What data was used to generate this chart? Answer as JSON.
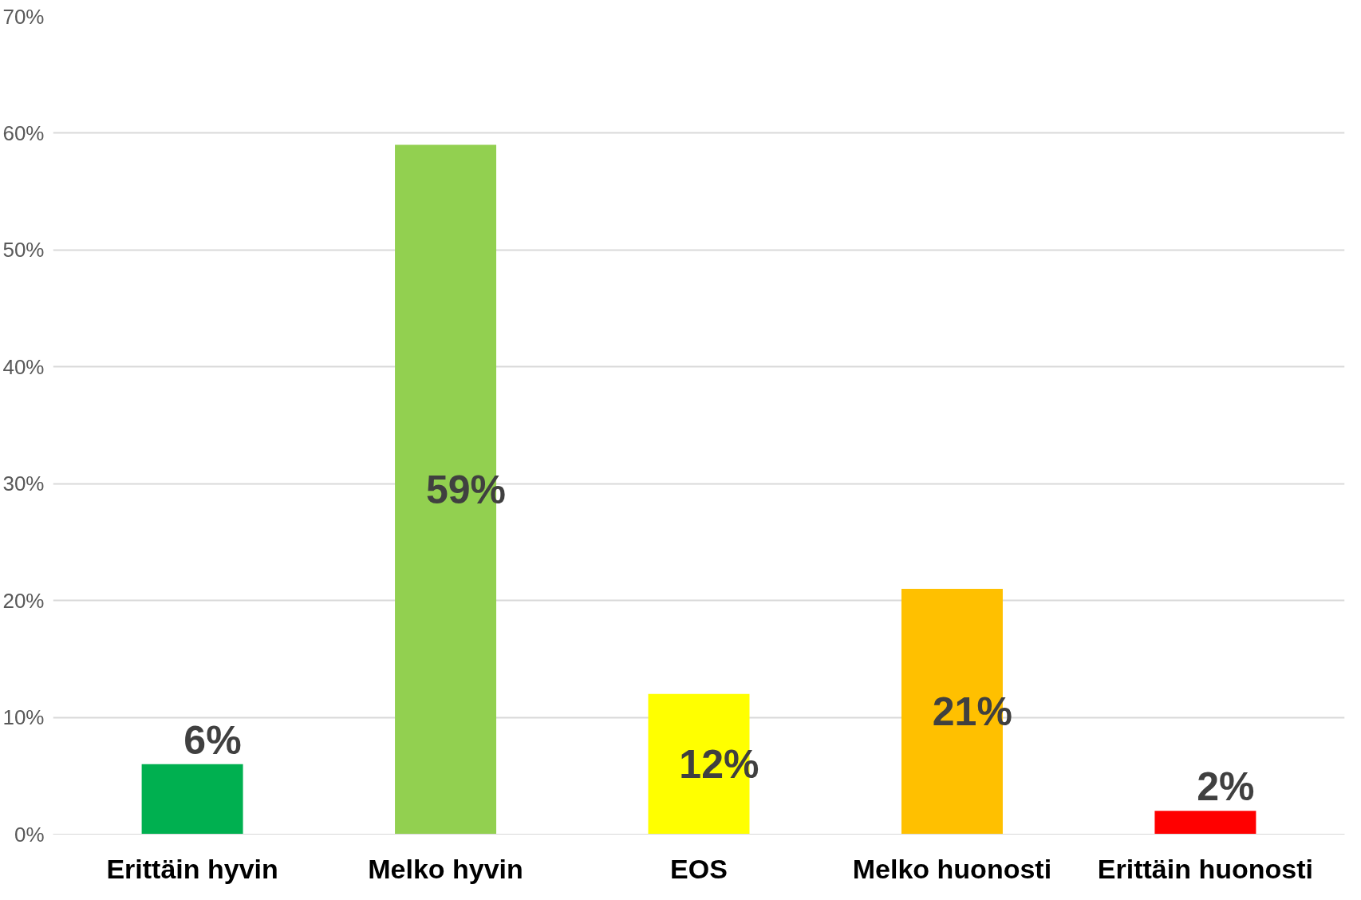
{
  "chart_data": {
    "type": "bar",
    "categories": [
      "Erittäin hyvin",
      "Melko hyvin",
      "EOS",
      "Melko huonosti",
      "Erittäin huonosti"
    ],
    "values": [
      6,
      59,
      12,
      21,
      2
    ],
    "colors": [
      "#00b050",
      "#92d050",
      "#ffff00",
      "#ffc000",
      "#ff0000"
    ],
    "value_labels": [
      "6%",
      "59%",
      "12%",
      "21%",
      "2%"
    ],
    "ylim": [
      0,
      70
    ],
    "yticks": [
      {
        "value": 0,
        "label": "0%"
      },
      {
        "value": 10,
        "label": "10%"
      },
      {
        "value": 20,
        "label": "20%"
      },
      {
        "value": 30,
        "label": "30%"
      },
      {
        "value": 40,
        "label": "40%"
      },
      {
        "value": 50,
        "label": "50%"
      },
      {
        "value": 60,
        "label": "60%"
      },
      {
        "value": 70,
        "label": "70%"
      }
    ],
    "grid": "y"
  }
}
